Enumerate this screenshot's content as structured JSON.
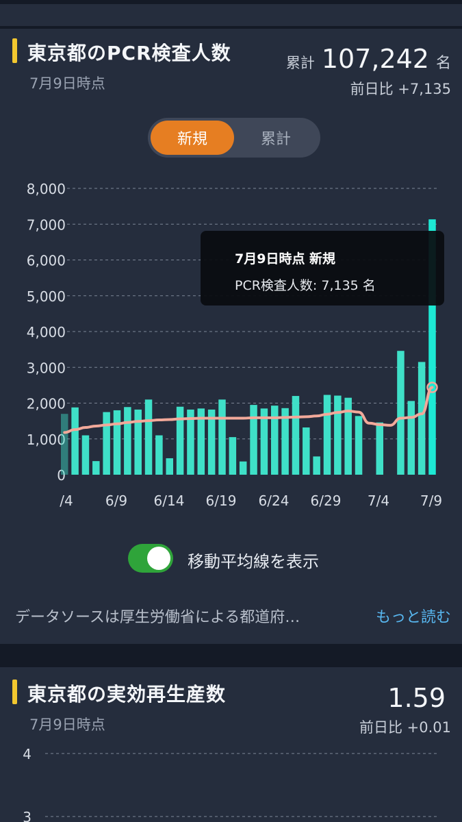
{
  "pcr_card": {
    "title": "東京都のPCR検査人数",
    "as_of": "7月9日時点",
    "total_label": "累計",
    "total_value": "107,242",
    "total_unit": "名",
    "diff": "前日比 +7,135",
    "tabs": [
      {
        "label": "新規",
        "active": true
      },
      {
        "label": "累計",
        "active": false
      }
    ],
    "tooltip": {
      "title": "7月9日時点 新規",
      "body": "PCR検査人数: 7,135 名"
    },
    "toggle": {
      "label": "移動平均線を表示",
      "on": true
    },
    "source_text": "データソースは厚生労働省による都道府…",
    "more_link": "もっと読む"
  },
  "chart_data": {
    "type": "bar",
    "ylim": [
      0,
      8000
    ],
    "yticks": [
      "0",
      "1,000",
      "2,000",
      "3,000",
      "4,000",
      "5,000",
      "6,000",
      "7,000",
      "8,000"
    ],
    "x_tick_labels": [
      "/4",
      "6/9",
      "6/14",
      "6/19",
      "6/24",
      "6/29",
      "7/4",
      "7/9"
    ],
    "values": [
      1700,
      1880,
      1100,
      380,
      1750,
      1800,
      1890,
      1820,
      2100,
      1100,
      460,
      1900,
      1820,
      1850,
      1820,
      2100,
      1050,
      370,
      1950,
      1850,
      1930,
      1860,
      2200,
      1320,
      510,
      2230,
      2210,
      2150,
      1640,
      0,
      1460,
      0,
      3460,
      2060,
      3150,
      7135
    ],
    "moving_average": [
      1180,
      1260,
      1320,
      1360,
      1390,
      1420,
      1460,
      1490,
      1510,
      1530,
      1540,
      1560,
      1570,
      1580,
      1580,
      1580,
      1580,
      1580,
      1590,
      1590,
      1590,
      1600,
      1610,
      1620,
      1640,
      1690,
      1740,
      1780,
      1750,
      1440,
      1400,
      1380,
      1580,
      1600,
      1700,
      2440
    ],
    "bar_color": "#3fe0c8",
    "highlight_color": "#1de9d4",
    "line_color": "#f2a99a"
  },
  "rt_card": {
    "title": "東京都の実効再生産数",
    "as_of": "7月9日時点",
    "value": "1.59",
    "diff": "前日比 +0.01",
    "y_tick_top": "4",
    "y_tick_next": "3"
  }
}
